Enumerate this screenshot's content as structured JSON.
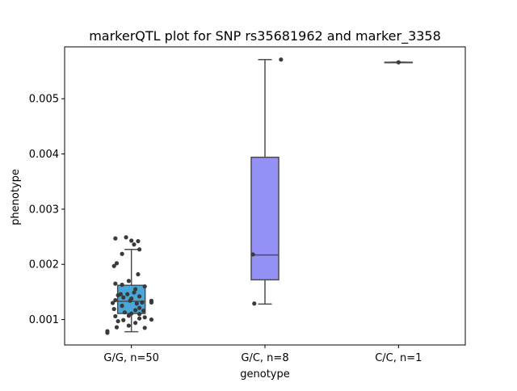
{
  "chart_data": {
    "type": "box",
    "title": "markerQTL plot for SNP rs35681962 and marker_3358",
    "xlabel": "genotype",
    "ylabel": "phenotype",
    "ylim": [
      0.00054,
      0.00594
    ],
    "yticks": [
      0.001,
      0.002,
      0.003,
      0.004,
      0.005
    ],
    "ytick_labels": [
      "0.001",
      "0.002",
      "0.003",
      "0.004",
      "0.005"
    ],
    "grid": false,
    "categories": [
      "G/G, n=50",
      "G/C, n=8",
      "C/C, n=1"
    ],
    "boxes": [
      {
        "category": "G/G, n=50",
        "color": "#4aa8d9",
        "whisker_low": 0.00078,
        "q1": 0.00111,
        "median": 0.00133,
        "q3": 0.00162,
        "whisker_high": 0.00227,
        "points": [
          [
            -0.12,
            0.00247
          ],
          [
            -0.04,
            0.00249
          ],
          [
            0.0,
            0.00243
          ],
          [
            0.05,
            0.00242
          ],
          [
            0.02,
            0.00236
          ],
          [
            0.06,
            0.00227
          ],
          [
            -0.07,
            0.00219
          ],
          [
            -0.11,
            0.00202
          ],
          [
            -0.13,
            0.00197
          ],
          [
            0.05,
            0.00182
          ],
          [
            -0.12,
            0.00165
          ],
          [
            -0.07,
            0.00163
          ],
          [
            -0.02,
            0.0017
          ],
          [
            0.1,
            0.0016
          ],
          [
            0.03,
            0.00155
          ],
          [
            -0.08,
            0.00146
          ],
          [
            -0.1,
            0.00144
          ],
          [
            -0.03,
            0.00146
          ],
          [
            0.02,
            0.00149
          ],
          [
            -0.06,
            0.0014
          ],
          [
            0.0,
            0.00138
          ],
          [
            0.06,
            0.00142
          ],
          [
            -0.12,
            0.00135
          ],
          [
            -0.01,
            0.00134
          ],
          [
            0.15,
            0.00134
          ],
          [
            0.08,
            0.00131
          ],
          [
            -0.14,
            0.0013
          ],
          [
            0.04,
            0.00129
          ],
          [
            0.15,
            0.00131
          ],
          [
            -0.07,
            0.00125
          ],
          [
            0.06,
            0.00121
          ],
          [
            -0.13,
            0.00119
          ],
          [
            0.03,
            0.00117
          ],
          [
            0.09,
            0.00116
          ],
          [
            -0.05,
            0.00113
          ],
          [
            0.0,
            0.00111
          ],
          [
            0.06,
            0.0011
          ],
          [
            -0.12,
            0.00106
          ],
          [
            -0.02,
            0.00107
          ],
          [
            0.1,
            0.00104
          ],
          [
            0.06,
            0.00102
          ],
          [
            0.15,
            0.001
          ],
          [
            -0.06,
            0.00099
          ],
          [
            -0.1,
            0.00097
          ],
          [
            0.03,
            0.00094
          ],
          [
            -0.02,
            0.00089
          ],
          [
            0.1,
            0.00085
          ],
          [
            -0.11,
            0.00086
          ],
          [
            -0.18,
            0.00079
          ],
          [
            -0.18,
            0.00076
          ]
        ]
      },
      {
        "category": "G/C, n=8",
        "color": "#9391f5",
        "whisker_low": 0.00128,
        "q1": 0.00172,
        "median": 0.00217,
        "q3": 0.00394,
        "whisker_high": 0.00571,
        "points": [
          [
            0.12,
            0.00571
          ],
          [
            -0.09,
            0.00218
          ],
          [
            -0.08,
            0.00129
          ]
        ]
      },
      {
        "category": "C/C, n=1",
        "color": "#7f7f7f",
        "whisker_low": 0.00566,
        "q1": 0.00566,
        "median": 0.00566,
        "q3": 0.00566,
        "whisker_high": 0.00566,
        "points": [
          [
            0.0,
            0.00566
          ]
        ]
      }
    ]
  }
}
